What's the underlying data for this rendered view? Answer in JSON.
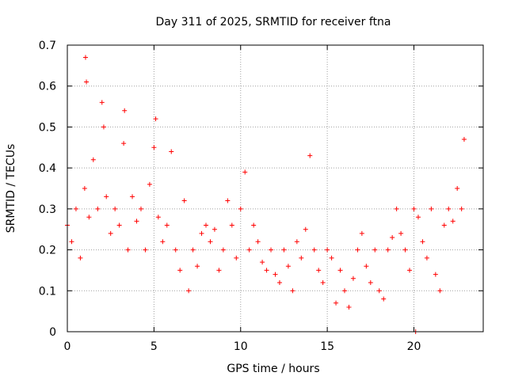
{
  "chart_data": {
    "type": "scatter",
    "title": "Day 311 of 2025, SRMTID for receiver ftna",
    "xlabel": "GPS time / hours",
    "ylabel": "SRMTID / TECUs",
    "xlim": [
      0,
      24
    ],
    "ylim": [
      0,
      0.7
    ],
    "xticks": [
      0,
      5,
      10,
      15,
      20
    ],
    "xtick_labels": [
      "0",
      "5",
      "10",
      "15",
      "20"
    ],
    "yticks": [
      0,
      0.1,
      0.2,
      0.3,
      0.4,
      0.5,
      0.6,
      0.7
    ],
    "ytick_labels": [
      "0",
      "0.1",
      "0.2",
      "0.3",
      "0.4",
      "0.5",
      "0.6",
      "0.7"
    ],
    "grid": true,
    "marker": "plus",
    "color": "#ff0000",
    "series": [
      {
        "name": "SRMTID",
        "x": [
          0.0,
          0.25,
          0.5,
          0.75,
          1.0,
          1.05,
          1.1,
          1.25,
          1.5,
          1.75,
          2.0,
          2.1,
          2.25,
          2.5,
          2.75,
          3.0,
          3.25,
          3.3,
          3.5,
          3.75,
          4.0,
          4.25,
          4.5,
          4.75,
          5.0,
          5.1,
          5.25,
          5.5,
          5.75,
          6.0,
          6.25,
          6.5,
          6.75,
          7.0,
          7.25,
          7.5,
          7.75,
          8.0,
          8.25,
          8.5,
          8.75,
          9.0,
          9.25,
          9.5,
          9.75,
          10.0,
          10.25,
          10.5,
          10.75,
          11.0,
          11.25,
          11.5,
          11.75,
          12.0,
          12.25,
          12.5,
          12.75,
          13.0,
          13.25,
          13.5,
          13.75,
          14.0,
          14.25,
          14.5,
          14.75,
          15.0,
          15.25,
          15.5,
          15.75,
          16.0,
          16.25,
          16.5,
          16.75,
          17.0,
          17.25,
          17.5,
          17.75,
          18.0,
          18.25,
          18.5,
          18.75,
          19.0,
          19.25,
          19.5,
          19.75,
          20.0,
          20.1,
          20.25,
          20.5,
          20.75,
          21.0,
          21.25,
          21.5,
          21.75,
          22.0,
          22.25,
          22.5,
          22.75,
          22.9
        ],
        "y": [
          0.26,
          0.22,
          0.3,
          0.18,
          0.35,
          0.67,
          0.61,
          0.28,
          0.42,
          0.3,
          0.56,
          0.5,
          0.33,
          0.24,
          0.3,
          0.26,
          0.46,
          0.54,
          0.2,
          0.33,
          0.27,
          0.3,
          0.2,
          0.36,
          0.45,
          0.52,
          0.28,
          0.22,
          0.26,
          0.44,
          0.2,
          0.15,
          0.32,
          0.1,
          0.2,
          0.16,
          0.24,
          0.26,
          0.22,
          0.25,
          0.15,
          0.2,
          0.32,
          0.26,
          0.18,
          0.3,
          0.39,
          0.2,
          0.26,
          0.22,
          0.17,
          0.15,
          0.2,
          0.14,
          0.12,
          0.2,
          0.16,
          0.1,
          0.22,
          0.18,
          0.25,
          0.43,
          0.2,
          0.15,
          0.12,
          0.2,
          0.18,
          0.07,
          0.15,
          0.1,
          0.06,
          0.13,
          0.2,
          0.24,
          0.16,
          0.12,
          0.2,
          0.1,
          0.08,
          0.2,
          0.23,
          0.3,
          0.24,
          0.2,
          0.15,
          0.3,
          0.0,
          0.28,
          0.22,
          0.18,
          0.3,
          0.14,
          0.1,
          0.26,
          0.3,
          0.27,
          0.35,
          0.3,
          0.47
        ]
      }
    ]
  }
}
